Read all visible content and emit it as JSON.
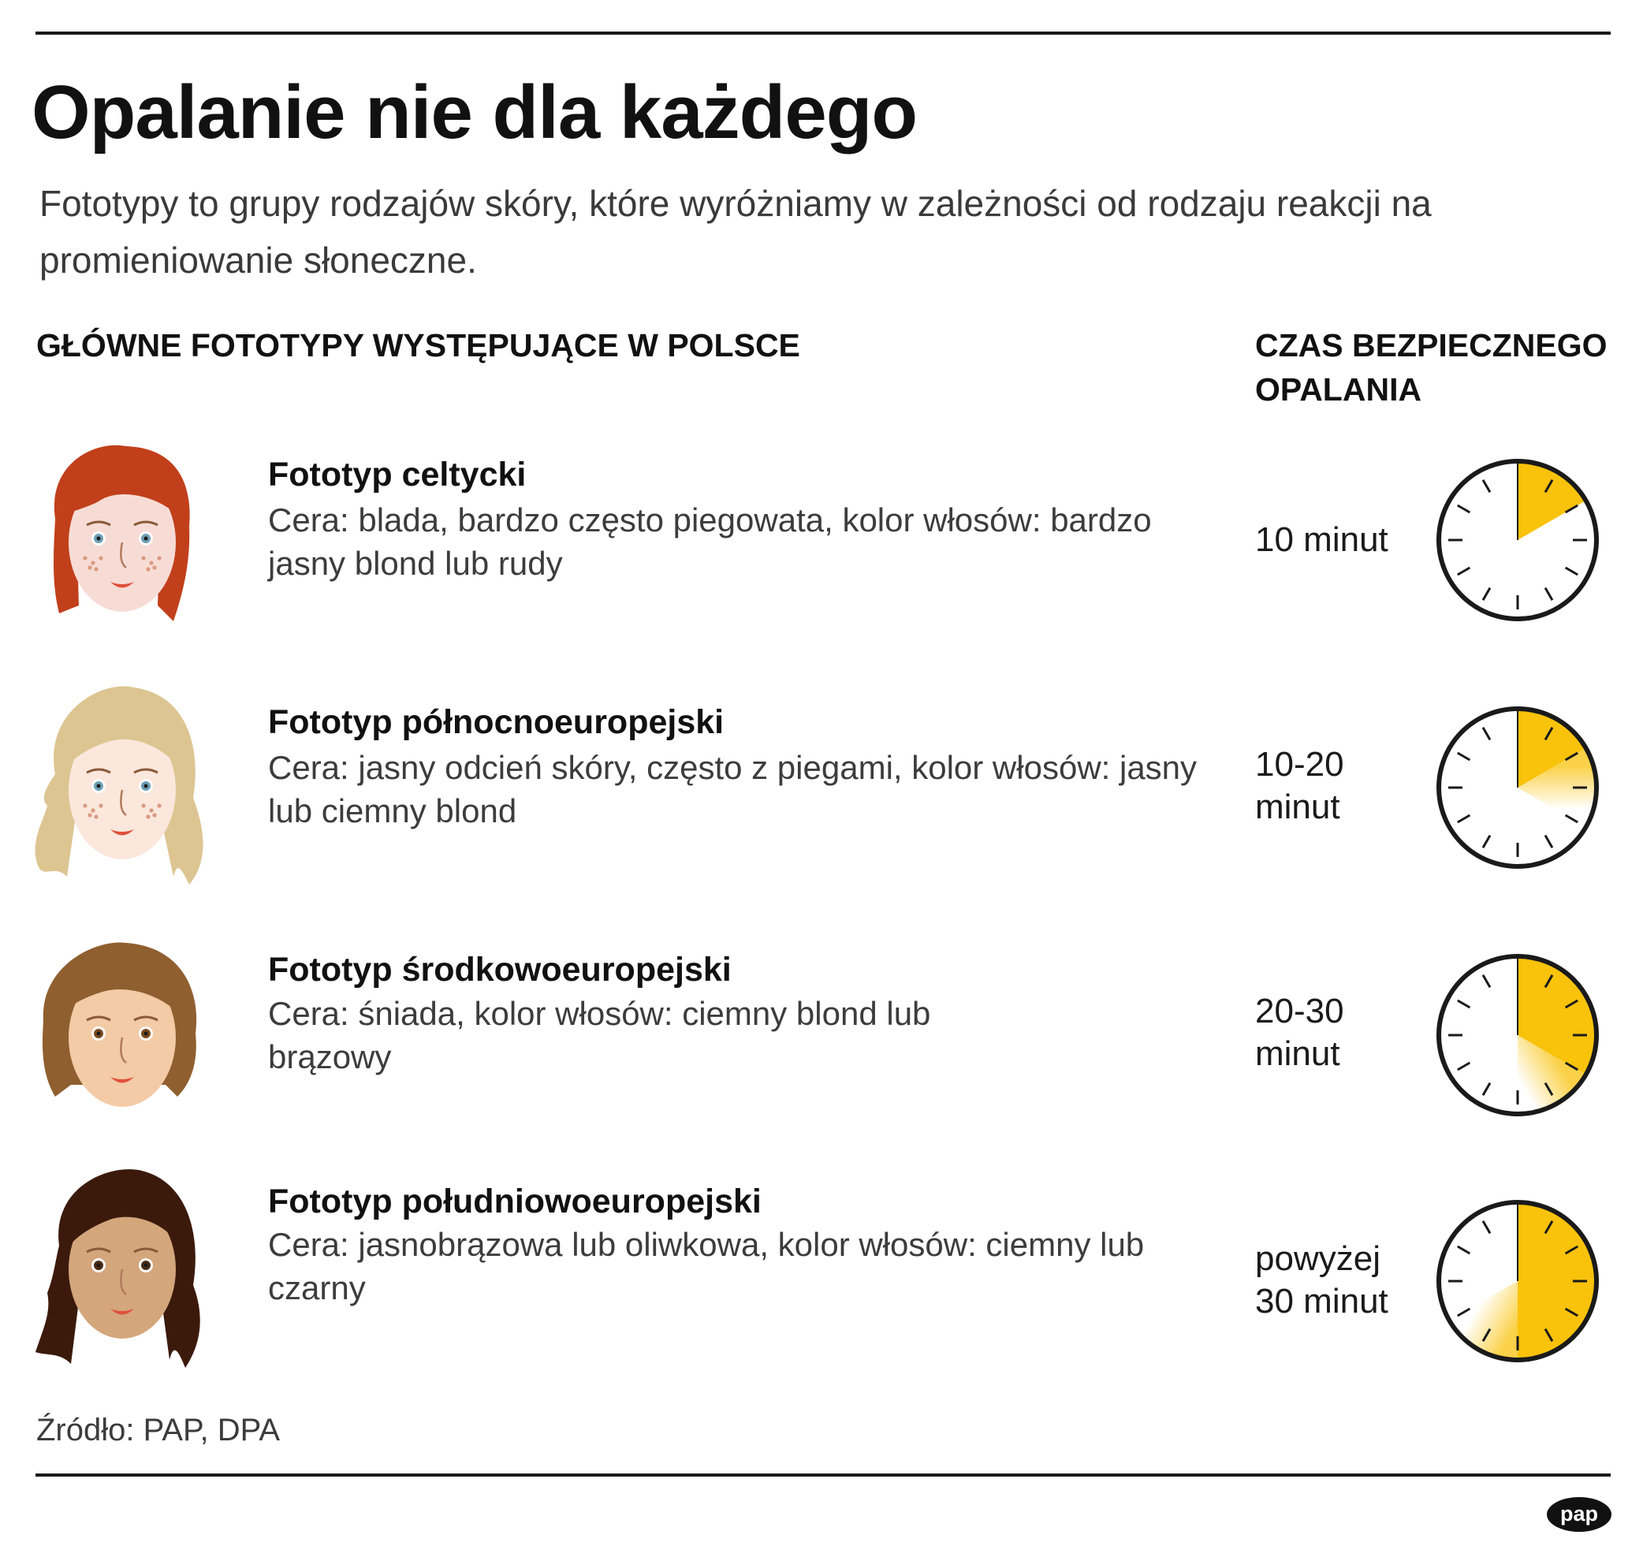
{
  "title": "Opalanie nie dla każdego",
  "subtitle": "Fototypy to grupy rodzajów skóry, które wyróżniamy w zależności od rodzaju reakcji na promieniowanie słoneczne.",
  "header_left": "GŁÓWNE FOTOTYPY WYSTĘPUJĄCE W POLSCE",
  "header_right": "CZAS BEZPIECZNEGO OPALANIA",
  "clock_color": "#f9c20b",
  "rows": [
    {
      "title": "Fototyp celtycki",
      "desc": "Cera: blada, bardzo często piegowata, kolor włosów: bardzo jasny blond lub rudy",
      "time": "10 minut",
      "safe_min": 10,
      "extra_min": 0,
      "hair": "#c1401b",
      "skin": "#f7dcd6",
      "eyes": "#6e9fb5",
      "freckles": true
    },
    {
      "title": "Fototyp północnoeuropejski",
      "desc": "Cera: jasny odcień skóry, często z piegami, kolor włosów: jasny lub ciemny blond",
      "time": "10-20 minut",
      "safe_min": 10,
      "extra_min": 10,
      "hair": "#ddc592",
      "skin": "#fbe7dc",
      "eyes": "#6e9fb5",
      "freckles": true
    },
    {
      "title": "Fototyp środkowoeuropejski",
      "desc": "Cera: śniada, kolor włosów: ciemny blond lub brązowy",
      "time": "20-30 minut",
      "safe_min": 20,
      "extra_min": 10,
      "hair": "#8f5f2f",
      "skin": "#f3cba6",
      "eyes": "#7a4a1e",
      "freckles": false
    },
    {
      "title": "Fototyp południowoeuropejski",
      "desc": "Cera: jasnobrązowa lub oliwkowa, kolor włosów: ciemny lub czarny",
      "time": "powyżej 30 minut",
      "safe_min": 30,
      "extra_min": 10,
      "hair": "#3b1a0c",
      "skin": "#d4a67c",
      "eyes": "#4a2a12",
      "freckles": false
    }
  ],
  "source": "Źródło: PAP, DPA",
  "logo_text": "pap"
}
